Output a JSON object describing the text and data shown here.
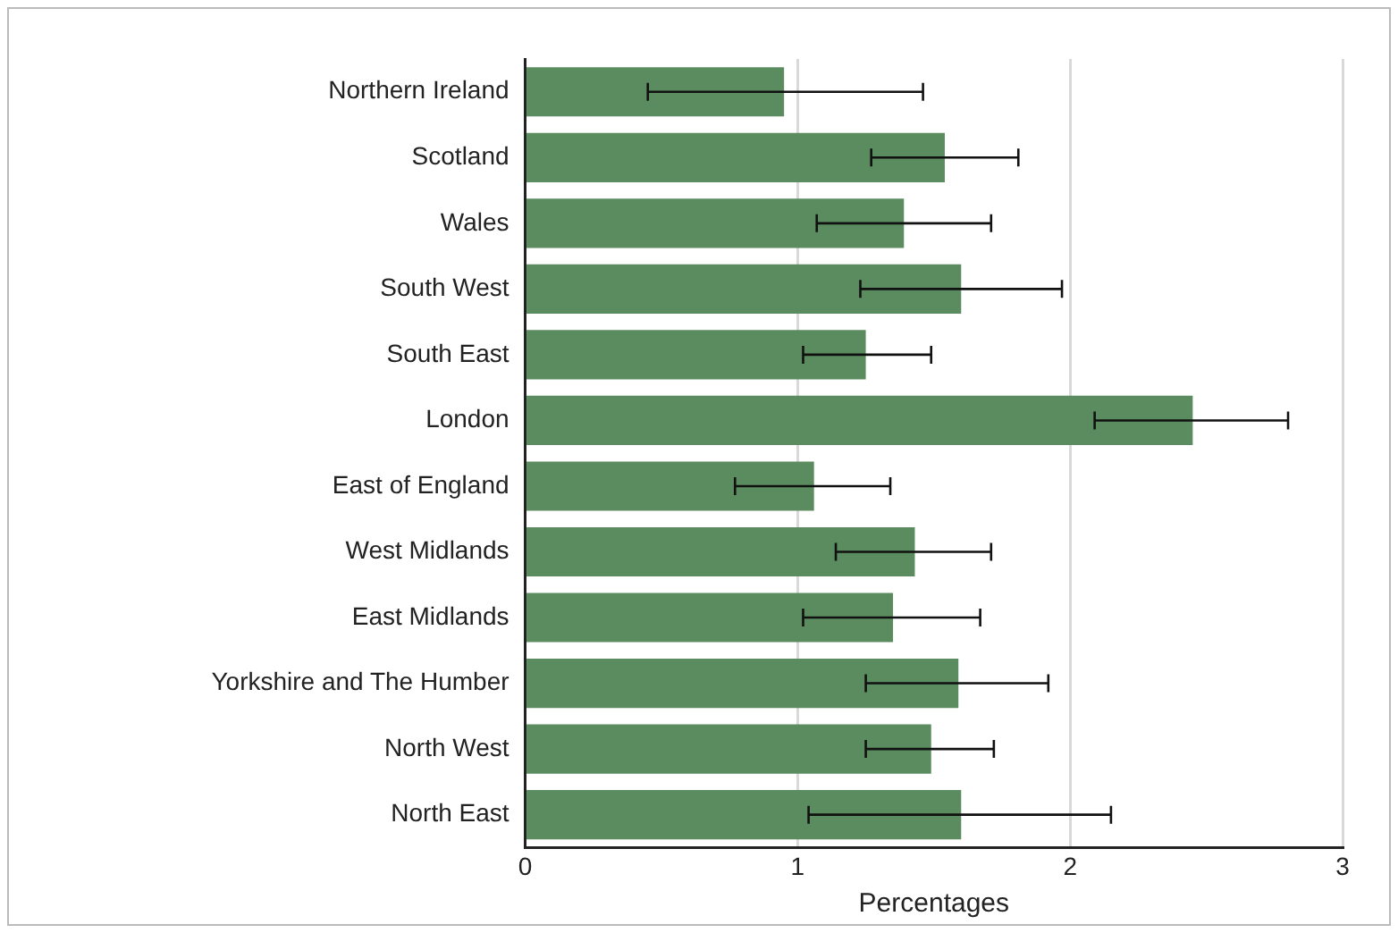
{
  "chart_data": {
    "type": "bar",
    "orientation": "horizontal",
    "xlabel": "Percentages",
    "categories": [
      "Northern Ireland",
      "Scotland",
      "Wales",
      "South West",
      "South East",
      "London",
      "East of England",
      "West Midlands",
      "East Midlands",
      "Yorkshire and The Humber",
      "North West",
      "North East"
    ],
    "values": [
      0.95,
      1.54,
      1.39,
      1.6,
      1.25,
      2.45,
      1.06,
      1.43,
      1.35,
      1.59,
      1.49,
      1.6
    ],
    "errors": [
      [
        0.45,
        1.46
      ],
      [
        1.27,
        1.81
      ],
      [
        1.07,
        1.71
      ],
      [
        1.23,
        1.97
      ],
      [
        1.02,
        1.49
      ],
      [
        2.09,
        2.8
      ],
      [
        0.77,
        1.34
      ],
      [
        1.14,
        1.71
      ],
      [
        1.02,
        1.67
      ],
      [
        1.25,
        1.92
      ],
      [
        1.25,
        1.72
      ],
      [
        1.04,
        2.15
      ]
    ],
    "color": "#5b8c5f",
    "xlim": [
      0,
      3
    ],
    "xticks": [
      0,
      1,
      2,
      3
    ],
    "grid": "x",
    "legend": false
  }
}
